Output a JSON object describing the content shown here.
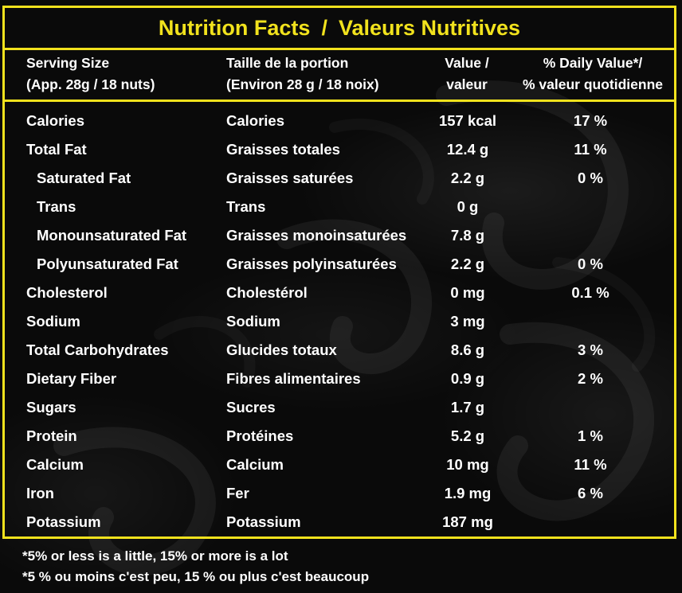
{
  "title": {
    "en": "Nutrition Facts",
    "separator": "/",
    "fr": "Valeurs Nutritives"
  },
  "colors": {
    "accent": "#f1e21d",
    "background": "#0a0a0a",
    "text": "#ffffff"
  },
  "header": {
    "serving_en_line1": "Serving Size",
    "serving_en_line2": "(App. 28g / 18 nuts)",
    "serving_fr_line1": "Taille de la portion",
    "serving_fr_line2": "(Environ 28 g / 18 noix)",
    "value_line1": "Value /",
    "value_line2": "valeur",
    "dv_line1": "% Daily Value*/",
    "dv_line2": "% valeur quotidienne"
  },
  "rows": [
    {
      "en": "Calories",
      "fr": "Calories",
      "value": "157 kcal",
      "dv": "17 %",
      "indent": false
    },
    {
      "en": "Total Fat",
      "fr": "Graisses totales",
      "value": "12.4 g",
      "dv": "11 %",
      "indent": false
    },
    {
      "en": "Saturated Fat",
      "fr": "Graisses saturées",
      "value": "2.2 g",
      "dv": "0 %",
      "indent": true
    },
    {
      "en": "Trans",
      "fr": "Trans",
      "value": "0 g",
      "dv": "",
      "indent": true
    },
    {
      "en": "Monounsaturated Fat",
      "fr": "Graisses monoinsaturées",
      "value": "7.8 g",
      "dv": "",
      "indent": true
    },
    {
      "en": "Polyunsaturated Fat",
      "fr": "Graisses polyinsaturées",
      "value": "2.2 g",
      "dv": "0 %",
      "indent": true
    },
    {
      "en": "Cholesterol",
      "fr": "Cholestérol",
      "value": "0 mg",
      "dv": "0.1 %",
      "indent": false
    },
    {
      "en": "Sodium",
      "fr": "Sodium",
      "value": "3 mg",
      "dv": "",
      "indent": false
    },
    {
      "en": "Total Carbohydrates",
      "fr": "Glucides totaux",
      "value": "8.6 g",
      "dv": "3 %",
      "indent": false
    },
    {
      "en": "Dietary Fiber",
      "fr": "Fibres alimentaires",
      "value": "0.9 g",
      "dv": "2 %",
      "indent": false
    },
    {
      "en": "Sugars",
      "fr": "Sucres",
      "value": "1.7 g",
      "dv": "",
      "indent": false
    },
    {
      "en": "Protein",
      "fr": "Protéines",
      "value": "5.2 g",
      "dv": "1 %",
      "indent": false
    },
    {
      "en": "Calcium",
      "fr": "Calcium",
      "value": "10 mg",
      "dv": "11 %",
      "indent": false
    },
    {
      "en": "Iron",
      "fr": "Fer",
      "value": "1.9 mg",
      "dv": "6 %",
      "indent": false
    },
    {
      "en": "Potassium",
      "fr": "Potassium",
      "value": "187 mg",
      "dv": "",
      "indent": false
    }
  ],
  "footnotes": {
    "en": "*5% or less is a little, 15% or more is a lot",
    "fr": "*5 % ou moins c'est peu, 15 % ou plus c'est beaucoup"
  }
}
